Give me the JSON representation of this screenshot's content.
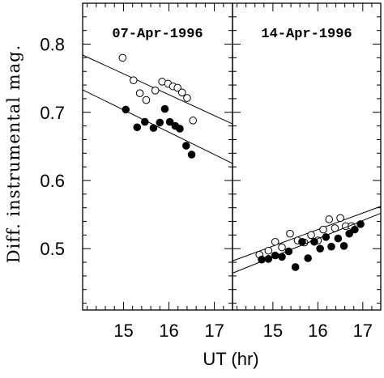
{
  "chart_data": {
    "type": "scatter",
    "ylabel": "Diff. instrumental mag.",
    "xlabel": "UT (hr)",
    "ylim": [
      0.41,
      0.86
    ],
    "yticks": [
      0.5,
      0.6,
      0.7,
      0.8
    ],
    "ytick_labels": [
      "0.5",
      "0.6",
      "0.7",
      "0.8"
    ],
    "panels": [
      {
        "title": "07-Apr-1996",
        "xlim": [
          14.1,
          17.4
        ],
        "xticks": [
          15,
          16,
          17
        ],
        "xtick_labels": [
          "15",
          "16",
          "17"
        ],
        "series": [
          {
            "marker": "open",
            "points": [
              [
                14.98,
                0.78
              ],
              [
                15.22,
                0.747
              ],
              [
                15.36,
                0.728
              ],
              [
                15.5,
                0.718
              ],
              [
                15.7,
                0.732
              ],
              [
                15.85,
                0.745
              ],
              [
                15.98,
                0.742
              ],
              [
                16.09,
                0.738
              ],
              [
                16.19,
                0.736
              ],
              [
                16.29,
                0.729
              ],
              [
                16.4,
                0.721
              ],
              [
                16.53,
                0.688
              ]
            ],
            "fit": [
              [
                14.1,
                0.784
              ],
              [
                17.4,
                0.683
              ]
            ]
          },
          {
            "marker": "filled",
            "points": [
              [
                15.05,
                0.704
              ],
              [
                15.3,
                0.678
              ],
              [
                15.47,
                0.686
              ],
              [
                15.66,
                0.677
              ],
              [
                15.8,
                0.685
              ],
              [
                15.91,
                0.705
              ],
              [
                16.02,
                0.686
              ],
              [
                16.14,
                0.68
              ],
              [
                16.24,
                0.676
              ],
              [
                16.38,
                0.651
              ],
              [
                16.5,
                0.638
              ]
            ],
            "fit": [
              [
                14.1,
                0.733
              ],
              [
                17.4,
                0.625
              ]
            ]
          }
        ]
      },
      {
        "title": "14-Apr-1996",
        "xlim": [
          14.1,
          17.4
        ],
        "xticks": [
          15,
          16,
          17
        ],
        "xtick_labels": [
          "15",
          "16",
          "17"
        ],
        "series": [
          {
            "marker": "open",
            "points": [
              [
                14.7,
                0.491
              ],
              [
                14.9,
                0.497
              ],
              [
                15.05,
                0.51
              ],
              [
                15.2,
                0.502
              ],
              [
                15.38,
                0.522
              ],
              [
                15.55,
                0.512
              ],
              [
                15.7,
                0.509
              ],
              [
                15.85,
                0.52
              ],
              [
                16.0,
                0.512
              ],
              [
                16.12,
                0.528
              ],
              [
                16.25,
                0.543
              ],
              [
                16.38,
                0.53
              ],
              [
                16.5,
                0.545
              ],
              [
                16.62,
                0.533
              ],
              [
                16.75,
                0.533
              ]
            ],
            "fit": [
              [
                14.1,
                0.482
              ],
              [
                17.4,
                0.562
              ]
            ]
          },
          {
            "marker": "filled",
            "points": [
              [
                14.75,
                0.484
              ],
              [
                14.9,
                0.485
              ],
              [
                15.05,
                0.49
              ],
              [
                15.2,
                0.488
              ],
              [
                15.35,
                0.496
              ],
              [
                15.5,
                0.473
              ],
              [
                15.65,
                0.51
              ],
              [
                15.78,
                0.486
              ],
              [
                15.92,
                0.51
              ],
              [
                16.05,
                0.5
              ],
              [
                16.18,
                0.517
              ],
              [
                16.3,
                0.503
              ],
              [
                16.45,
                0.515
              ],
              [
                16.58,
                0.504
              ],
              [
                16.7,
                0.522
              ],
              [
                16.82,
                0.528
              ],
              [
                16.95,
                0.536
              ]
            ],
            "fit": [
              [
                14.1,
                0.464
              ],
              [
                17.4,
                0.552
              ]
            ]
          }
        ]
      }
    ]
  }
}
